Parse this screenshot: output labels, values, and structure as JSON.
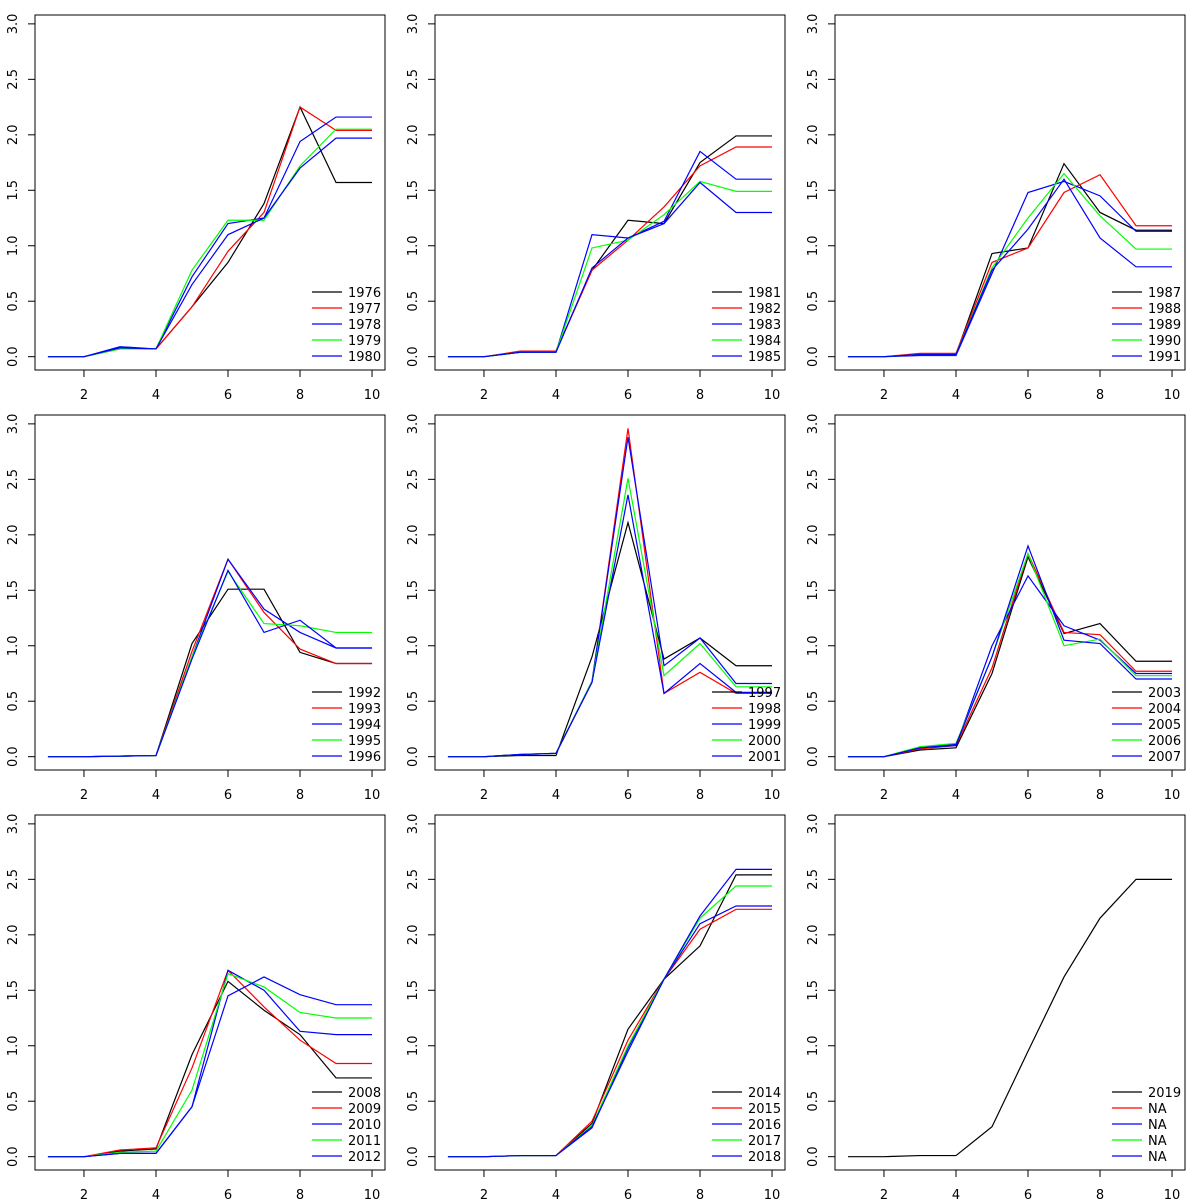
{
  "chart_data": [
    {
      "type": "line",
      "x": [
        1,
        2,
        3,
        4,
        5,
        6,
        7,
        8,
        9,
        10
      ],
      "xlim": [
        0.64,
        10.36
      ],
      "ylim": [
        -0.12,
        3.08
      ],
      "xticks": [
        2,
        4,
        6,
        8,
        10
      ],
      "yticks": [
        {
          "value": 0,
          "label": "0.0"
        },
        0.5,
        {
          "value": 1,
          "label": "1.0"
        },
        1.5,
        {
          "value": 2,
          "label": "2.0"
        },
        2.5,
        {
          "value": 3,
          "label": "3.0"
        }
      ],
      "legend": "bottomright",
      "series": [
        {
          "name": "1976",
          "color": "#000000",
          "values": [
            0,
            0,
            0.08,
            0.07,
            0.45,
            0.85,
            1.38,
            2.25,
            1.57,
            1.57
          ]
        },
        {
          "name": "1977",
          "color": "#ff0000",
          "values": [
            0,
            0,
            0.07,
            0.07,
            0.45,
            0.95,
            1.3,
            2.25,
            2.04,
            2.04
          ]
        },
        {
          "name": "1978",
          "color": "#0000ff",
          "values": [
            0,
            0,
            0.09,
            0.07,
            0.72,
            1.2,
            1.25,
            1.94,
            2.16,
            2.16
          ]
        },
        {
          "name": "1979",
          "color": "#00ff00",
          "values": [
            0,
            0,
            0.07,
            0.07,
            0.78,
            1.23,
            1.23,
            1.72,
            2.05,
            2.05
          ]
        },
        {
          "name": "1980",
          "color": "#0000ff",
          "values": [
            0,
            0,
            0.08,
            0.07,
            0.65,
            1.1,
            1.25,
            1.7,
            1.97,
            1.97
          ]
        }
      ]
    },
    {
      "type": "line",
      "x": [
        1,
        2,
        3,
        4,
        5,
        6,
        7,
        8,
        9,
        10
      ],
      "xlim": [
        0.64,
        10.36
      ],
      "ylim": [
        -0.12,
        3.08
      ],
      "xticks": [
        2,
        4,
        6,
        8,
        10
      ],
      "yticks": [
        {
          "value": 0,
          "label": "0.0"
        },
        0.5,
        {
          "value": 1,
          "label": "1.0"
        },
        1.5,
        {
          "value": 2,
          "label": "2.0"
        },
        2.5,
        {
          "value": 3,
          "label": "3.0"
        }
      ],
      "legend": "bottomright",
      "series": [
        {
          "name": "1981",
          "color": "#000000",
          "values": [
            0,
            0,
            0.04,
            0.05,
            0.78,
            1.23,
            1.2,
            1.75,
            1.99,
            1.99
          ]
        },
        {
          "name": "1982",
          "color": "#ff0000",
          "values": [
            0,
            0,
            0.05,
            0.05,
            0.78,
            1.05,
            1.35,
            1.72,
            1.89,
            1.89
          ]
        },
        {
          "name": "1983",
          "color": "#0000ff",
          "values": [
            0,
            0,
            0.04,
            0.04,
            1.1,
            1.07,
            1.22,
            1.85,
            1.6,
            1.6
          ]
        },
        {
          "name": "1984",
          "color": "#00ff00",
          "values": [
            0,
            0,
            0.04,
            0.04,
            0.98,
            1.05,
            1.28,
            1.58,
            1.49,
            1.49
          ]
        },
        {
          "name": "1985",
          "color": "#0000ff",
          "values": [
            0,
            0,
            0.04,
            0.04,
            0.8,
            1.07,
            1.2,
            1.57,
            1.3,
            1.3
          ]
        }
      ]
    },
    {
      "type": "line",
      "x": [
        1,
        2,
        3,
        4,
        5,
        6,
        7,
        8,
        9,
        10
      ],
      "xlim": [
        0.64,
        10.36
      ],
      "ylim": [
        -0.12,
        3.08
      ],
      "xticks": [
        2,
        4,
        6,
        8,
        10
      ],
      "yticks": [
        {
          "value": 0,
          "label": "0.0"
        },
        0.5,
        {
          "value": 1,
          "label": "1.0"
        },
        1.5,
        {
          "value": 2,
          "label": "2.0"
        },
        2.5,
        {
          "value": 3,
          "label": "3.0"
        }
      ],
      "legend": "bottomright",
      "series": [
        {
          "name": "1987",
          "color": "#000000",
          "values": [
            0,
            0,
            0.02,
            0.02,
            0.93,
            0.98,
            1.74,
            1.3,
            1.14,
            1.14
          ]
        },
        {
          "name": "1988",
          "color": "#ff0000",
          "values": [
            0,
            0,
            0.03,
            0.03,
            0.85,
            0.98,
            1.48,
            1.64,
            1.18,
            1.18
          ]
        },
        {
          "name": "1989",
          "color": "#0000ff",
          "values": [
            0,
            0,
            0.01,
            0.01,
            0.75,
            1.48,
            1.58,
            1.45,
            1.13,
            1.13
          ]
        },
        {
          "name": "1990",
          "color": "#00ff00",
          "values": [
            0,
            0,
            0.02,
            0.02,
            0.8,
            1.25,
            1.65,
            1.27,
            0.97,
            0.97
          ]
        },
        {
          "name": "1991",
          "color": "#0000ff",
          "values": [
            0,
            0,
            0.02,
            0.02,
            0.78,
            1.15,
            1.6,
            1.07,
            0.81,
            0.81
          ]
        }
      ]
    },
    {
      "type": "line",
      "x": [
        1,
        2,
        3,
        4,
        5,
        6,
        7,
        8,
        9,
        10
      ],
      "xlim": [
        0.64,
        10.36
      ],
      "ylim": [
        -0.12,
        3.08
      ],
      "xticks": [
        2,
        4,
        6,
        8,
        10
      ],
      "yticks": [
        {
          "value": 0,
          "label": "0.0"
        },
        0.5,
        {
          "value": 1,
          "label": "1.0"
        },
        1.5,
        {
          "value": 2,
          "label": "2.0"
        },
        2.5,
        {
          "value": 3,
          "label": "3.0"
        }
      ],
      "legend": "bottomright",
      "series": [
        {
          "name": "1992",
          "color": "#000000",
          "values": [
            0,
            0,
            0.005,
            0.01,
            1.02,
            1.51,
            1.51,
            0.94,
            0.84,
            0.84
          ]
        },
        {
          "name": "1993",
          "color": "#ff0000",
          "values": [
            0,
            0,
            0.005,
            0.01,
            0.95,
            1.78,
            1.3,
            0.97,
            0.84,
            0.84
          ]
        },
        {
          "name": "1994",
          "color": "#0000ff",
          "values": [
            0,
            0,
            0.005,
            0.01,
            0.9,
            1.78,
            1.33,
            1.12,
            0.98,
            0.98
          ]
        },
        {
          "name": "1995",
          "color": "#00ff00",
          "values": [
            0,
            0,
            0.005,
            0.01,
            0.9,
            1.67,
            1.2,
            1.18,
            1.12,
            1.12
          ]
        },
        {
          "name": "1996",
          "color": "#0000ff",
          "values": [
            0,
            0,
            0.005,
            0.01,
            0.88,
            1.68,
            1.12,
            1.23,
            0.98,
            0.98
          ]
        }
      ]
    },
    {
      "type": "line",
      "x": [
        1,
        2,
        3,
        4,
        5,
        6,
        7,
        8,
        9,
        10
      ],
      "xlim": [
        0.64,
        10.36
      ],
      "ylim": [
        -0.12,
        3.08
      ],
      "xticks": [
        2,
        4,
        6,
        8,
        10
      ],
      "yticks": [
        {
          "value": 0,
          "label": "0.0"
        },
        0.5,
        {
          "value": 1,
          "label": "1.0"
        },
        1.5,
        {
          "value": 2,
          "label": "2.0"
        },
        2.5,
        {
          "value": 3,
          "label": "3.0"
        }
      ],
      "legend": "bottomright",
      "series": [
        {
          "name": "1997",
          "color": "#000000",
          "values": [
            0,
            0,
            0.01,
            0.01,
            0.9,
            2.11,
            0.88,
            1.07,
            0.82,
            0.82
          ]
        },
        {
          "name": "1998",
          "color": "#ff0000",
          "values": [
            0,
            0,
            0.02,
            0.03,
            0.67,
            2.96,
            0.57,
            0.76,
            0.57,
            0.57
          ]
        },
        {
          "name": "1999",
          "color": "#0000ff",
          "values": [
            0,
            0,
            0.02,
            0.03,
            0.68,
            2.88,
            0.82,
            1.07,
            0.66,
            0.66
          ]
        },
        {
          "name": "2000",
          "color": "#00ff00",
          "values": [
            0,
            0,
            0.02,
            0.03,
            0.68,
            2.51,
            0.73,
            1.02,
            0.63,
            0.63
          ]
        },
        {
          "name": "2001",
          "color": "#0000ff",
          "values": [
            0,
            0,
            0.02,
            0.03,
            0.67,
            2.36,
            0.57,
            0.84,
            0.58,
            0.58
          ]
        }
      ]
    },
    {
      "type": "line",
      "x": [
        1,
        2,
        3,
        4,
        5,
        6,
        7,
        8,
        9,
        10
      ],
      "xlim": [
        0.64,
        10.36
      ],
      "ylim": [
        -0.12,
        3.08
      ],
      "xticks": [
        2,
        4,
        6,
        8,
        10
      ],
      "yticks": [
        {
          "value": 0,
          "label": "0.0"
        },
        0.5,
        {
          "value": 1,
          "label": "1.0"
        },
        1.5,
        {
          "value": 2,
          "label": "2.0"
        },
        2.5,
        {
          "value": 3,
          "label": "3.0"
        }
      ],
      "legend": "bottomright",
      "series": [
        {
          "name": "2003",
          "color": "#000000",
          "values": [
            0,
            0,
            0.06,
            0.08,
            0.75,
            1.8,
            1.11,
            1.2,
            0.86,
            0.86
          ]
        },
        {
          "name": "2004",
          "color": "#ff0000",
          "values": [
            0,
            0,
            0.07,
            0.1,
            0.8,
            1.83,
            1.12,
            1.1,
            0.77,
            0.77
          ]
        },
        {
          "name": "2005",
          "color": "#0000ff",
          "values": [
            0,
            0,
            0.08,
            0.1,
            1.0,
            1.63,
            1.18,
            1.05,
            0.75,
            0.75
          ]
        },
        {
          "name": "2006",
          "color": "#00ff00",
          "values": [
            0,
            0,
            0.09,
            0.12,
            0.9,
            1.83,
            1.0,
            1.06,
            0.73,
            0.73
          ]
        },
        {
          "name": "2007",
          "color": "#0000ff",
          "values": [
            0,
            0,
            0.08,
            0.11,
            0.9,
            1.9,
            1.05,
            1.02,
            0.7,
            0.7
          ]
        }
      ]
    },
    {
      "type": "line",
      "x": [
        1,
        2,
        3,
        4,
        5,
        6,
        7,
        8,
        9,
        10
      ],
      "xlim": [
        0.64,
        10.36
      ],
      "ylim": [
        -0.12,
        3.08
      ],
      "xticks": [
        2,
        4,
        6,
        8,
        10
      ],
      "yticks": [
        {
          "value": 0,
          "label": "0.0"
        },
        0.5,
        {
          "value": 1,
          "label": "1.0"
        },
        1.5,
        {
          "value": 2,
          "label": "2.0"
        },
        2.5,
        {
          "value": 3,
          "label": "3.0"
        }
      ],
      "legend": "bottomright",
      "series": [
        {
          "name": "2008",
          "color": "#000000",
          "values": [
            0,
            0,
            0.05,
            0.07,
            0.92,
            1.58,
            1.32,
            1.1,
            0.71,
            0.71
          ]
        },
        {
          "name": "2009",
          "color": "#ff0000",
          "values": [
            0,
            0,
            0.06,
            0.08,
            0.8,
            1.68,
            1.35,
            1.05,
            0.84,
            0.84
          ]
        },
        {
          "name": "2010",
          "color": "#0000ff",
          "values": [
            0,
            0,
            0.03,
            0.03,
            0.45,
            1.68,
            1.5,
            1.13,
            1.1,
            1.1
          ]
        },
        {
          "name": "2011",
          "color": "#00ff00",
          "values": [
            0,
            0,
            0.04,
            0.05,
            0.6,
            1.65,
            1.53,
            1.3,
            1.25,
            1.25
          ]
        },
        {
          "name": "2012",
          "color": "#0000ff",
          "values": [
            0,
            0,
            0.03,
            0.03,
            0.45,
            1.45,
            1.62,
            1.46,
            1.37,
            1.37
          ]
        }
      ]
    },
    {
      "type": "line",
      "x": [
        1,
        2,
        3,
        4,
        5,
        6,
        7,
        8,
        9,
        10
      ],
      "xlim": [
        0.64,
        10.36
      ],
      "ylim": [
        -0.12,
        3.08
      ],
      "xticks": [
        2,
        4,
        6,
        8,
        10
      ],
      "yticks": [
        {
          "value": 0,
          "label": "0.0"
        },
        0.5,
        {
          "value": 1,
          "label": "1.0"
        },
        1.5,
        {
          "value": 2,
          "label": "2.0"
        },
        2.5,
        {
          "value": 3,
          "label": "3.0"
        }
      ],
      "legend": "bottomright",
      "series": [
        {
          "name": "2014",
          "color": "#000000",
          "values": [
            0,
            0,
            0.01,
            0.01,
            0.3,
            1.15,
            1.6,
            1.9,
            2.54,
            2.54
          ]
        },
        {
          "name": "2015",
          "color": "#ff0000",
          "values": [
            0,
            0,
            0.01,
            0.01,
            0.32,
            1.05,
            1.6,
            2.05,
            2.23,
            2.23
          ]
        },
        {
          "name": "2016",
          "color": "#0000ff",
          "values": [
            0,
            0,
            0.01,
            0.01,
            0.26,
            0.98,
            1.6,
            2.1,
            2.26,
            2.26
          ]
        },
        {
          "name": "2017",
          "color": "#00ff00",
          "values": [
            0,
            0,
            0.01,
            0.01,
            0.28,
            1.0,
            1.6,
            2.15,
            2.44,
            2.44
          ]
        },
        {
          "name": "2018",
          "color": "#0000ff",
          "values": [
            0,
            0,
            0.01,
            0.01,
            0.27,
            0.95,
            1.6,
            2.17,
            2.59,
            2.59
          ]
        }
      ]
    },
    {
      "type": "line",
      "x": [
        1,
        2,
        3,
        4,
        5,
        6,
        7,
        8,
        9,
        10
      ],
      "xlim": [
        0.64,
        10.36
      ],
      "ylim": [
        -0.12,
        3.08
      ],
      "xticks": [
        2,
        4,
        6,
        8,
        10
      ],
      "yticks": [
        {
          "value": 0,
          "label": "0.0"
        },
        0.5,
        {
          "value": 1,
          "label": "1.0"
        },
        1.5,
        {
          "value": 2,
          "label": "2.0"
        },
        2.5,
        {
          "value": 3,
          "label": "3.0"
        }
      ],
      "legend": "bottomright",
      "series": [
        {
          "name": "2019",
          "color": "#000000",
          "values": [
            0,
            0,
            0.01,
            0.01,
            0.27,
            0.95,
            1.62,
            2.15,
            2.5,
            2.5
          ]
        },
        {
          "name": "NA",
          "color": "#ff0000",
          "values": [
            null,
            null,
            null,
            null,
            null,
            null,
            null,
            null,
            null,
            null
          ]
        },
        {
          "name": "NA",
          "color": "#0000ff",
          "values": [
            null,
            null,
            null,
            null,
            null,
            null,
            null,
            null,
            null,
            null
          ]
        },
        {
          "name": "NA",
          "color": "#00ff00",
          "values": [
            null,
            null,
            null,
            null,
            null,
            null,
            null,
            null,
            null,
            null
          ]
        },
        {
          "name": "NA",
          "color": "#0000ff",
          "values": [
            null,
            null,
            null,
            null,
            null,
            null,
            null,
            null,
            null,
            null
          ]
        }
      ]
    }
  ]
}
